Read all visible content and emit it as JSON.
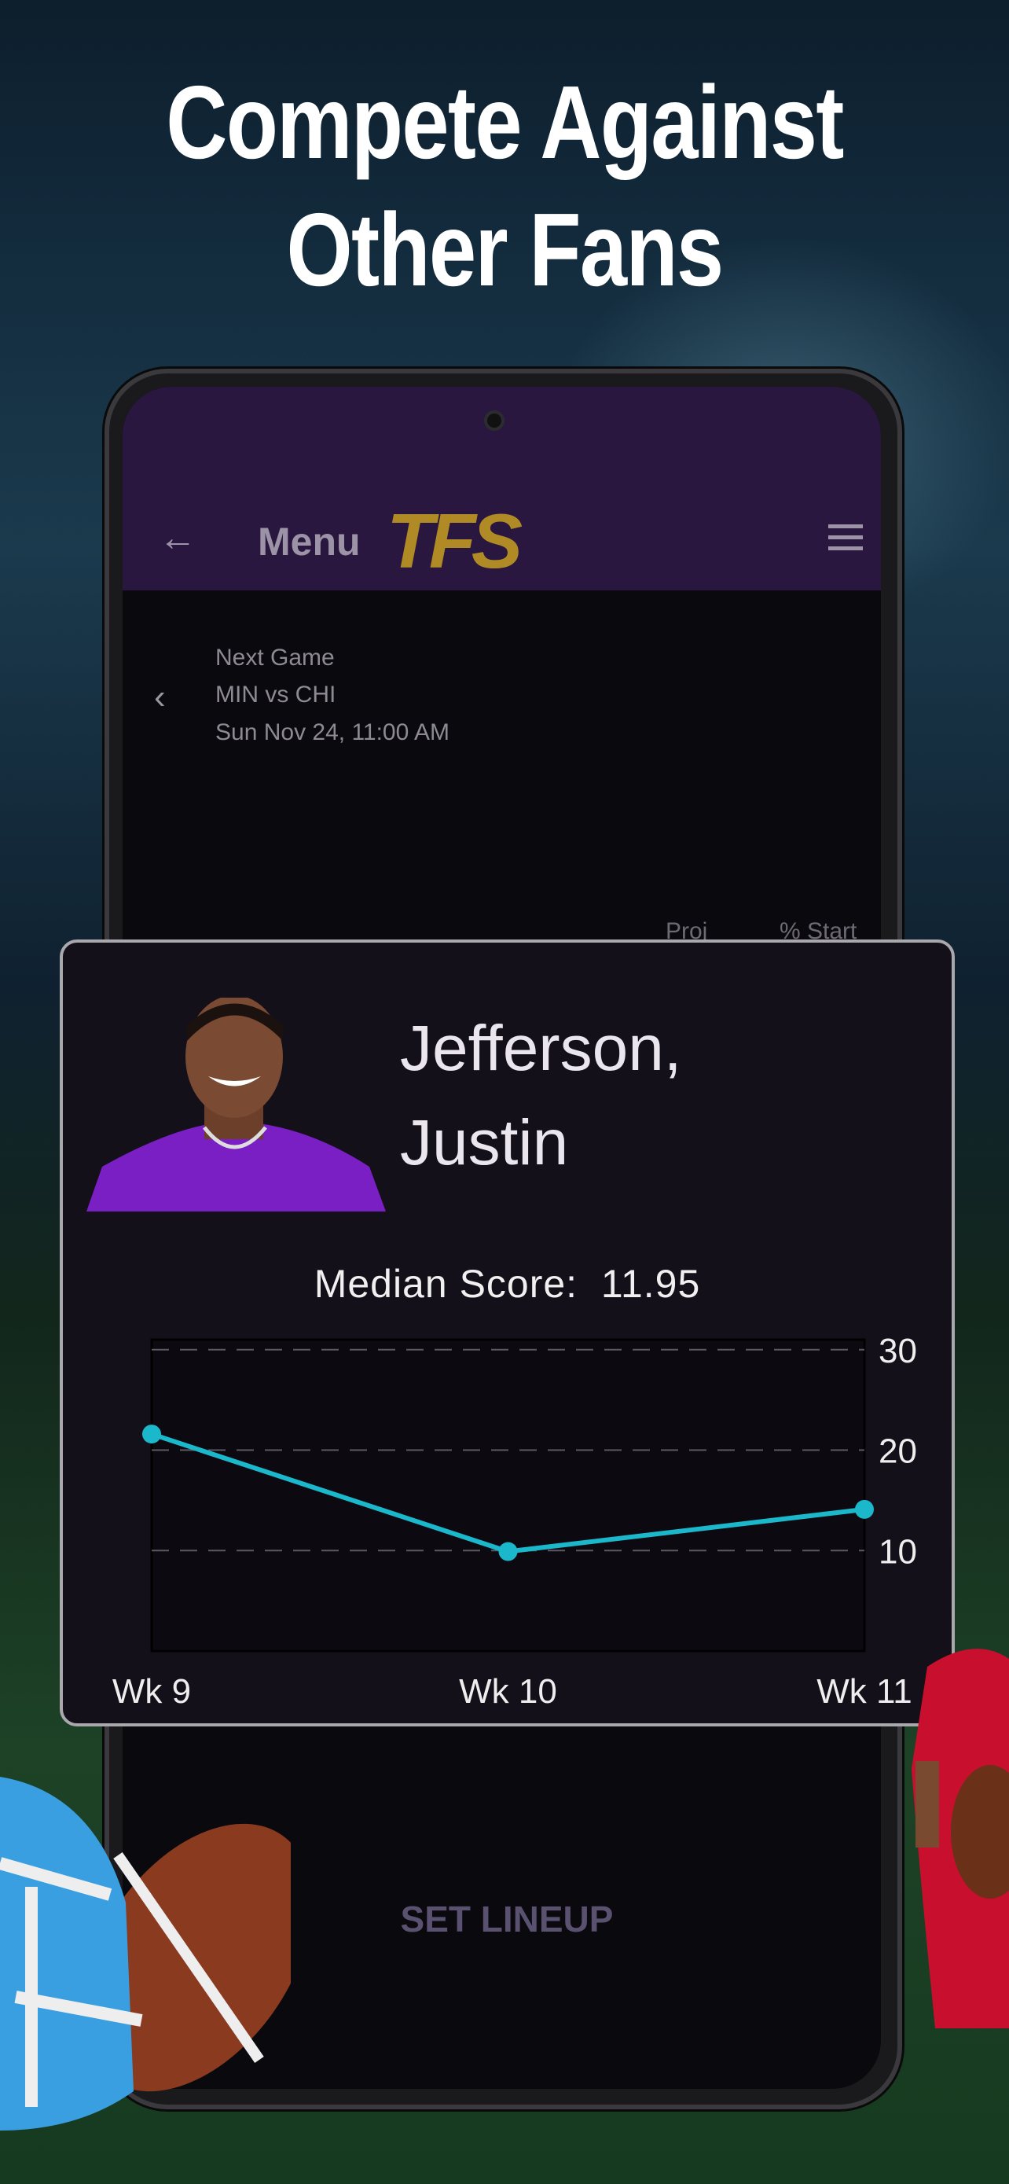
{
  "headline": {
    "line1": "Compete Against",
    "line2": "Other Fans"
  },
  "appbar": {
    "title": "Menu",
    "logo_text": "TFS",
    "back_icon": "arrow-left-icon",
    "menu_icon": "hamburger-icon"
  },
  "next_game": {
    "label": "Next Game",
    "matchup": "MIN vs CHI",
    "datetime": "Sun Nov 24, 11:00 AM",
    "prev_icon": "chevron-left-icon"
  },
  "columns": {
    "proj": "Proj",
    "start": "% Start"
  },
  "player": {
    "name_line1": "Jefferson,",
    "name_line2": "Justin",
    "median_label": "Median Score:",
    "median_value": "11.95"
  },
  "chart_data": {
    "type": "line",
    "categories": [
      "Wk 9",
      "Wk 10",
      "Wk 11"
    ],
    "values": [
      21.6,
      9.9,
      14.1
    ],
    "yticks": [
      10,
      20,
      30
    ],
    "ylim": [
      0,
      31
    ],
    "grid": "dashed horizontal",
    "color": "#1bb8cc"
  },
  "footer": {
    "set_lineup": "SET LINEUP"
  },
  "colors": {
    "appbar": "#2a1740",
    "logo": "#b08a24",
    "accent": "#1bb8cc"
  }
}
